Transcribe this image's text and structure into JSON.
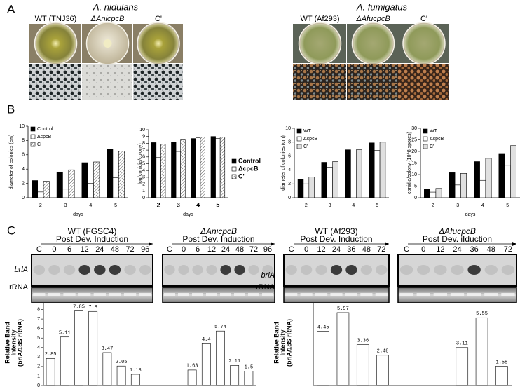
{
  "labels": [
    "A",
    "B",
    "C"
  ],
  "panel_a": [
    {
      "title": "A. nidulans",
      "strains": [
        "WT (TNJ36)",
        "ΔAnicpcB",
        "C'"
      ]
    },
    {
      "title": "A. fumigatus",
      "strains": [
        "WT (Af293)",
        "ΔAfucpcB",
        "C'"
      ]
    }
  ],
  "panel_c": [
    {
      "rows": [
        "brlA",
        "rRNA"
      ],
      "blots": [
        {
          "strain": "WT (FGSC4)",
          "induction": "Post Dev. Induction",
          "lanes": [
            "C",
            "0",
            "6",
            "12",
            "24",
            "48",
            "72",
            "96"
          ]
        },
        {
          "strain": "ΔAnicpcB",
          "induction": "Post Dev. Induction",
          "lanes": [
            "C",
            "0",
            "6",
            "12",
            "24",
            "48",
            "72",
            "96"
          ]
        }
      ]
    },
    {
      "rows": [
        "brlA",
        "rRNA"
      ],
      "blots": [
        {
          "strain": "WT (Af293)",
          "induction": "Post Dev. Induction",
          "lanes": [
            "C",
            "0",
            "12",
            "24",
            "36",
            "48",
            "72"
          ]
        },
        {
          "strain": "ΔAfucpcB",
          "induction": "Post Dev. iIduction",
          "lanes": [
            "C",
            "0",
            "12",
            "24",
            "36",
            "48",
            "72"
          ]
        }
      ]
    }
  ],
  "chart_data": [
    {
      "type": "bar",
      "ylabel": "diameter of colonies (cm)",
      "xlabel": "days",
      "categories": [
        "2",
        "3",
        "4",
        "5"
      ],
      "ylim": [
        0,
        10
      ],
      "yticks": [
        0,
        2,
        4,
        6,
        8,
        10
      ],
      "legend": "upper left",
      "series": [
        {
          "name": "Control",
          "color": "#000000",
          "values": [
            2.4,
            3.6,
            4.9,
            6.8
          ]
        },
        {
          "name": "ΔcpcB",
          "color": "#ffffff",
          "values": [
            0.8,
            1.2,
            2.0,
            2.8
          ]
        },
        {
          "name": "C'",
          "color": "#ffffff",
          "hatch": "diagonal",
          "values": [
            2.3,
            3.9,
            5.0,
            6.5
          ]
        }
      ]
    },
    {
      "type": "bar",
      "ylabel": "log(conidia/colony)",
      "xlabel": "days",
      "categories": [
        "2",
        "3",
        "4",
        "5"
      ],
      "ylim": [
        0,
        10
      ],
      "yticks": [
        0,
        1,
        2,
        3,
        4,
        5,
        6,
        7,
        8,
        9,
        10
      ],
      "legend": "right",
      "series": [
        {
          "name": "Control",
          "color": "#000000",
          "values": [
            8.1,
            8.2,
            8.7,
            9.0
          ]
        },
        {
          "name": "ΔcpcB",
          "color": "#ffffff",
          "values": [
            5.9,
            6.8,
            8.8,
            8.7
          ]
        },
        {
          "name": "C'",
          "color": "#e6e6e6",
          "hatch": "diagonal",
          "values": [
            7.9,
            8.5,
            8.9,
            8.9
          ]
        }
      ]
    },
    {
      "type": "bar",
      "ylabel": "diameter of colonies (cm)",
      "categories": [
        "2",
        "3",
        "4",
        "5"
      ],
      "ylim": [
        0,
        10
      ],
      "yticks": [
        0,
        2,
        4,
        6,
        8,
        10
      ],
      "legend": "upper left",
      "series": [
        {
          "name": "WT",
          "color": "#000000",
          "values": [
            2.6,
            5.1,
            6.9,
            7.9
          ]
        },
        {
          "name": "ΔcpcB",
          "color": "#ffffff",
          "values": [
            2.0,
            4.4,
            4.7,
            6.8
          ]
        },
        {
          "name": "C'",
          "color": "#e0e0e0",
          "values": [
            3.0,
            5.2,
            6.9,
            8.0
          ]
        }
      ]
    },
    {
      "type": "bar",
      "ylabel": "conidia/colony (10^8 spores)",
      "xlabel": "days",
      "categories": [
        "2",
        "3",
        "4",
        "5"
      ],
      "ylim": [
        0,
        30
      ],
      "yticks": [
        0,
        5,
        10,
        15,
        20,
        25,
        30
      ],
      "legend": "upper left",
      "series": [
        {
          "name": "WT",
          "color": "#000000",
          "values": [
            3.7,
            10.8,
            15.6,
            18.8
          ]
        },
        {
          "name": "ΔcpcB",
          "color": "#ffffff",
          "values": [
            2.4,
            5.5,
            7.5,
            14.0
          ]
        },
        {
          "name": "C'",
          "color": "#e0e0e0",
          "values": [
            4.0,
            10.5,
            17.0,
            22.5
          ]
        }
      ]
    },
    {
      "type": "bar",
      "ylabel": [
        "Relative Band",
        "Intensity",
        "(brlA/18S rRNA)"
      ],
      "color": "#ffffff",
      "data_labels": true,
      "categories": [
        null,
        null,
        null,
        null,
        null,
        null,
        null,
        null,
        null,
        null,
        null,
        null,
        null,
        null,
        null
      ],
      "values": [
        2.85,
        5.11,
        7.85,
        7.8,
        3.47,
        2.05,
        1.18,
        null,
        null,
        null,
        1.63,
        4.4,
        5.74,
        2.11,
        1.5
      ],
      "ylim": [
        0,
        9
      ],
      "yticks": [
        0,
        1,
        2,
        3,
        4,
        5,
        6,
        7,
        8,
        9
      ]
    },
    {
      "type": "bar",
      "ylabel": [
        "Relative Band",
        "Intensity",
        "(brlA/18S rRNA)"
      ],
      "color": "#ffffff",
      "data_labels": true,
      "categories": [
        null,
        null,
        null,
        null,
        null,
        null,
        null,
        null,
        null,
        null
      ],
      "values": [
        4.45,
        5.97,
        3.36,
        2.48,
        null,
        null,
        null,
        3.11,
        5.55,
        1.58
      ],
      "ylim": [
        0,
        7
      ],
      "yticks": []
    }
  ]
}
